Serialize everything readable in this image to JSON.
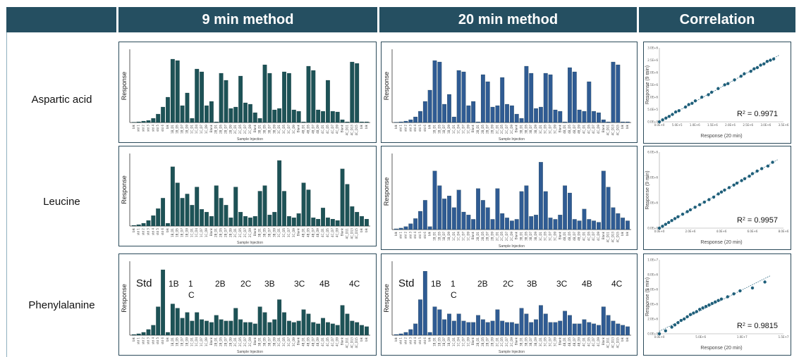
{
  "headers": {
    "nine": "9 min method",
    "twenty": "20 min method",
    "corr": "Correlation"
  },
  "rows": [
    "Aspartic acid",
    "Leucine",
    "Phenylalanine"
  ],
  "colors": {
    "header": "#254f61",
    "bar9": "#1d5256",
    "bar20": "#2f5b93",
    "scatter": "#1f5f7a"
  },
  "axis_labels": {
    "bar_y": "Response",
    "bar_x": "Sample Injection",
    "scatter_y": "Response (9 min)",
    "scatter_x": "Response (20 min)"
  },
  "group_labels": [
    "Std",
    "1B",
    "1",
    "C",
    "2B",
    "2C",
    "3B",
    "3C",
    "4B",
    "4C"
  ],
  "chart_data": [
    {
      "type": "bar",
      "row": "Aspartic acid",
      "method": "9 min method",
      "categories": [
        "blk",
        "std 1",
        "std 2",
        "std 3",
        "std 4",
        "std 5",
        "std 6",
        "blk",
        "1B_D1",
        "1B_D5",
        "1B_D7",
        "1B_D9",
        "1C_D1",
        "1C_D4",
        "1C_D7",
        "1C_D9",
        "Blank",
        "2B_D1",
        "2B_D5",
        "2B_D7",
        "2B_D9",
        "2C_D1",
        "2C_D5",
        "2C_D7",
        "2C_D9",
        "Blank",
        "3B_D1",
        "3B_D5",
        "3B_D7",
        "3B_D9",
        "3C_D1",
        "3C_D5",
        "3C_D7",
        "3C_D9",
        "Blank",
        "4B_D1",
        "4B_D5",
        "4B_D7",
        "4B_D9",
        "4C_D1",
        "4C_D5",
        "4C_D7",
        "4C_D9",
        "Blank",
        "4C_D11",
        "4C_D13",
        "4C_D15",
        "blk",
        "blk"
      ],
      "values": [
        0.5,
        1,
        2,
        3,
        6,
        12,
        22,
        36,
        90,
        88,
        24,
        42,
        6,
        76,
        72,
        24,
        30,
        1,
        70,
        60,
        20,
        22,
        66,
        28,
        26,
        14,
        6,
        82,
        70,
        18,
        20,
        72,
        70,
        18,
        16,
        1,
        80,
        74,
        18,
        16,
        60,
        16,
        15,
        4,
        1,
        86,
        84,
        1,
        1
      ],
      "ylim": [
        0,
        100
      ]
    },
    {
      "type": "bar",
      "row": "Aspartic acid",
      "method": "20 min method",
      "categories": [
        "blk",
        "std 1",
        "std 2",
        "std 3",
        "std 4",
        "std 5",
        "std 6",
        "blk",
        "1B_D1",
        "1B_D5",
        "1B_D7",
        "1B_D9",
        "1C_D1",
        "1C_D4",
        "1C_D7",
        "1C_D9",
        "Blank",
        "2B_D1",
        "2B_D5",
        "2B_D7",
        "2B_D9",
        "2C_D1",
        "2C_D5",
        "2C_D7",
        "2C_D9",
        "Blank",
        "3B_D1",
        "3B_D5",
        "3B_D7",
        "3B_D9",
        "3C_D1",
        "3C_D5",
        "3C_D7",
        "3C_D9",
        "Blank",
        "4B_D1",
        "4B_D5",
        "4B_D7",
        "4B_D9",
        "4C_D1",
        "4C_D5",
        "4C_D7",
        "4C_D9",
        "Blank",
        "4C_D11",
        "4C_D13",
        "4C_D15",
        "blk",
        "blk"
      ],
      "values": [
        0.5,
        1,
        2,
        4,
        8,
        16,
        30,
        46,
        88,
        86,
        26,
        40,
        8,
        74,
        72,
        24,
        30,
        1,
        68,
        58,
        22,
        24,
        64,
        26,
        24,
        12,
        6,
        80,
        70,
        20,
        22,
        70,
        68,
        18,
        16,
        1,
        78,
        72,
        18,
        16,
        58,
        16,
        14,
        4,
        1,
        86,
        82,
        1,
        1
      ],
      "ylim": [
        0,
        100
      ]
    },
    {
      "type": "scatter",
      "row": "Aspartic acid",
      "method": "Correlation",
      "x": [
        0.0,
        0.1,
        0.2,
        0.3,
        0.4,
        0.5,
        0.6,
        0.8,
        0.9,
        1.0,
        1.1,
        1.3,
        1.5,
        1.6,
        1.8,
        2.0,
        2.1,
        2.3,
        2.5,
        2.6,
        2.8,
        2.9,
        3.0,
        3.1,
        3.2,
        3.3,
        3.4,
        3.5
      ],
      "y": [
        0.0,
        0.08,
        0.15,
        0.22,
        0.3,
        0.4,
        0.45,
        0.6,
        0.7,
        0.75,
        0.85,
        1.0,
        1.1,
        1.2,
        1.35,
        1.5,
        1.55,
        1.7,
        1.85,
        1.95,
        2.05,
        2.15,
        2.2,
        2.3,
        2.35,
        2.45,
        2.5,
        2.55
      ],
      "xlim": [
        0,
        3.8
      ],
      "ylim": [
        0,
        3.0
      ],
      "x_ticks": [
        "0.0E+0",
        "5.0E+5",
        "1.0E+6",
        "1.5E+6",
        "2.0E+6",
        "2.5E+6",
        "3.0E+6",
        "3.5E+6"
      ],
      "y_ticks": [
        "0.0E+0",
        "5.0E+5",
        "1.0E+6",
        "1.5E+6",
        "2.0E+6",
        "2.5E+6",
        "3.0E+6"
      ],
      "r2_label": "R",
      "r2_value": "2 = 0.9971"
    },
    {
      "type": "bar",
      "row": "Leucine",
      "method": "9 min method",
      "categories": [
        "blk",
        "std 1",
        "std 2",
        "std 3",
        "std 4",
        "std 5",
        "std 6",
        "blk",
        "1B_D1",
        "1B_D5",
        "1B_D7",
        "1B_D9",
        "1C_D1",
        "1C_D4",
        "1C_D7",
        "1C_D9",
        "Blank",
        "2B_D1",
        "2B_D5",
        "2B_D7",
        "2B_D9",
        "2C_D1",
        "2C_D5",
        "2C_D7",
        "2C_D9",
        "Blank",
        "3B_D1",
        "3B_D5",
        "3B_D7",
        "3B_D9",
        "3C_D1",
        "3C_D5",
        "3C_D7",
        "3C_D9",
        "Blank",
        "4B_D1",
        "4B_D5",
        "4B_D7",
        "4B_D9",
        "4C_D1",
        "4C_D5",
        "4C_D7",
        "4C_D9",
        "Blank",
        "4C_D11",
        "4C_D13",
        "4C_D15",
        "blk",
        "blk"
      ],
      "values": [
        1,
        2,
        4,
        8,
        15,
        25,
        40,
        4,
        85,
        62,
        40,
        46,
        30,
        56,
        24,
        20,
        14,
        58,
        40,
        30,
        12,
        56,
        20,
        14,
        12,
        14,
        50,
        58,
        16,
        20,
        94,
        50,
        14,
        12,
        18,
        62,
        52,
        12,
        10,
        26,
        12,
        10,
        8,
        82,
        60,
        28,
        20,
        14,
        10
      ],
      "ylim": [
        0,
        100
      ]
    },
    {
      "type": "bar",
      "row": "Leucine",
      "method": "20 min method",
      "categories": [
        "blk",
        "std 1",
        "std 2",
        "std 3",
        "std 4",
        "std 5",
        "std 6",
        "blk",
        "1B_D1",
        "1B_D5",
        "1B_D7",
        "1B_D9",
        "1C_D1",
        "1C_D4",
        "1C_D7",
        "1C_D9",
        "Blank",
        "2B_D1",
        "2B_D5",
        "2B_D7",
        "2B_D9",
        "2C_D1",
        "2C_D5",
        "2C_D7",
        "2C_D9",
        "Blank",
        "3B_D1",
        "3B_D5",
        "3B_D7",
        "3B_D9",
        "3C_D1",
        "3C_D5",
        "3C_D7",
        "3C_D9",
        "Blank",
        "4B_D1",
        "4B_D5",
        "4B_D7",
        "4B_D9",
        "4C_D1",
        "4C_D5",
        "4C_D7",
        "4C_D9",
        "Blank",
        "4C_D11",
        "4C_D13",
        "4C_D15",
        "blk",
        "blk"
      ],
      "values": [
        1,
        2,
        4,
        8,
        15,
        25,
        40,
        4,
        80,
        60,
        42,
        46,
        30,
        54,
        24,
        20,
        14,
        56,
        40,
        30,
        14,
        56,
        22,
        16,
        12,
        14,
        52,
        60,
        18,
        20,
        92,
        52,
        16,
        14,
        20,
        60,
        50,
        14,
        12,
        28,
        14,
        12,
        10,
        80,
        58,
        30,
        22,
        16,
        12
      ],
      "ylim": [
        0,
        100
      ]
    },
    {
      "type": "scatter",
      "row": "Leucine",
      "method": "Correlation",
      "x": [
        0.0,
        0.2,
        0.4,
        0.6,
        0.8,
        1.0,
        1.2,
        1.5,
        1.8,
        2.0,
        2.3,
        2.6,
        2.9,
        3.2,
        3.5,
        3.8,
        4.0,
        4.2,
        4.5,
        4.8,
        5.0,
        5.3,
        5.5,
        5.8,
        6.0,
        6.3,
        6.6,
        7.0,
        7.3
      ],
      "y": [
        0.0,
        0.15,
        0.3,
        0.45,
        0.6,
        0.75,
        0.9,
        1.1,
        1.3,
        1.45,
        1.65,
        1.85,
        2.05,
        2.25,
        2.45,
        2.7,
        2.85,
        3.0,
        3.2,
        3.4,
        3.55,
        3.75,
        3.9,
        4.1,
        4.3,
        4.5,
        4.7,
        4.9,
        5.2
      ],
      "xlim": [
        0,
        8.0
      ],
      "ylim": [
        0,
        6.0
      ],
      "x_ticks": [
        "0.0E+0",
        "2.0E+6",
        "4.0E+6",
        "6.0E+6",
        "8.0E+6"
      ],
      "y_ticks": [
        "0.0E+0",
        "2.0E+6",
        "4.0E+6",
        "6.0E+6"
      ],
      "r2_label": "R",
      "r2_value": "2 = 0.9957"
    },
    {
      "type": "bar",
      "row": "Phenylalanine",
      "method": "9 min method",
      "categories": [
        "blk",
        "std 1",
        "std 2",
        "std 3",
        "std 4",
        "std 5",
        "std 6",
        "blk",
        "1B_D1",
        "1B_D5",
        "1B_D7",
        "1B_D9",
        "1C_D1",
        "1C_D4",
        "1C_D7",
        "1C_D9",
        "Blank",
        "2B_D1",
        "2B_D5",
        "2B_D7",
        "2B_D9",
        "2C_D1",
        "2C_D5",
        "2C_D7",
        "2C_D9",
        "Blank",
        "3B_D1",
        "3B_D5",
        "3B_D7",
        "3B_D9",
        "3C_D1",
        "3C_D5",
        "3C_D7",
        "3C_D9",
        "Blank",
        "4B_D1",
        "4B_D5",
        "4B_D7",
        "4B_D9",
        "4C_D1",
        "4C_D5",
        "4C_D7",
        "4C_D9",
        "Blank",
        "4C_D11",
        "4C_D13",
        "4C_D15",
        "blk",
        "blk"
      ],
      "values": [
        1,
        2,
        4,
        8,
        14,
        40,
        92,
        4,
        44,
        38,
        24,
        32,
        20,
        32,
        22,
        20,
        18,
        28,
        22,
        20,
        20,
        38,
        22,
        18,
        18,
        16,
        40,
        32,
        18,
        22,
        50,
        32,
        20,
        18,
        20,
        36,
        30,
        18,
        16,
        24,
        18,
        16,
        14,
        42,
        30,
        20,
        18,
        14,
        12
      ],
      "ylim": [
        0,
        100
      ]
    },
    {
      "type": "bar",
      "row": "Phenylalanine",
      "method": "20 min method",
      "categories": [
        "blk",
        "std 1",
        "std 2",
        "std 3",
        "std 4",
        "std 5",
        "std 6",
        "blk",
        "1B_D1",
        "1B_D5",
        "1B_D7",
        "1B_D9",
        "1C_D1",
        "1C_D4",
        "1C_D7",
        "1C_D9",
        "Blank",
        "2B_D1",
        "2B_D5",
        "2B_D7",
        "2B_D9",
        "2C_D1",
        "2C_D5",
        "2C_D7",
        "2C_D9",
        "Blank",
        "3B_D1",
        "3B_D5",
        "3B_D7",
        "3B_D9",
        "3C_D1",
        "3C_D5",
        "3C_D7",
        "3C_D9",
        "Blank",
        "4B_D1",
        "4B_D5",
        "4B_D7",
        "4B_D9",
        "4C_D1",
        "4C_D5",
        "4C_D7",
        "4C_D9",
        "Blank",
        "4C_D11",
        "4C_D13",
        "4C_D15",
        "blk",
        "blk"
      ],
      "values": [
        1,
        2,
        4,
        8,
        16,
        50,
        90,
        4,
        40,
        36,
        22,
        30,
        20,
        30,
        20,
        18,
        18,
        28,
        22,
        18,
        20,
        36,
        20,
        18,
        18,
        16,
        38,
        30,
        18,
        22,
        42,
        30,
        18,
        18,
        20,
        34,
        28,
        16,
        16,
        22,
        18,
        16,
        14,
        40,
        28,
        20,
        16,
        14,
        12
      ],
      "ylim": [
        0,
        100
      ]
    },
    {
      "type": "scatter",
      "row": "Phenylalanine",
      "method": "Correlation",
      "x": [
        0.0,
        0.1,
        0.2,
        0.25,
        0.3,
        0.35,
        0.4,
        0.45,
        0.5,
        0.55,
        0.6,
        0.65,
        0.7,
        0.75,
        0.8,
        0.85,
        0.9,
        0.95,
        1.0,
        1.1,
        1.2,
        1.3,
        1.5,
        1.7
      ],
      "y": [
        0.0,
        0.4,
        0.9,
        1.2,
        1.5,
        1.8,
        2.0,
        2.3,
        2.6,
        2.8,
        3.0,
        3.3,
        3.5,
        3.7,
        3.9,
        4.1,
        4.3,
        4.5,
        4.7,
        5.0,
        5.4,
        5.8,
        6.2,
        7.0
      ],
      "xlim": [
        0,
        2.0
      ],
      "ylim": [
        0,
        10
      ],
      "x_ticks": [
        "0.0E+0",
        "5.0E+6",
        "1.0E+7",
        "1.5E+7"
      ],
      "y_ticks": [
        "0.0E+0",
        "2.0E+6",
        "4.0E+6",
        "6.0E+6",
        "8.0E+6",
        "1.0E+7"
      ],
      "r2_label": "R",
      "r2_value": "2 = 0.9815"
    }
  ]
}
